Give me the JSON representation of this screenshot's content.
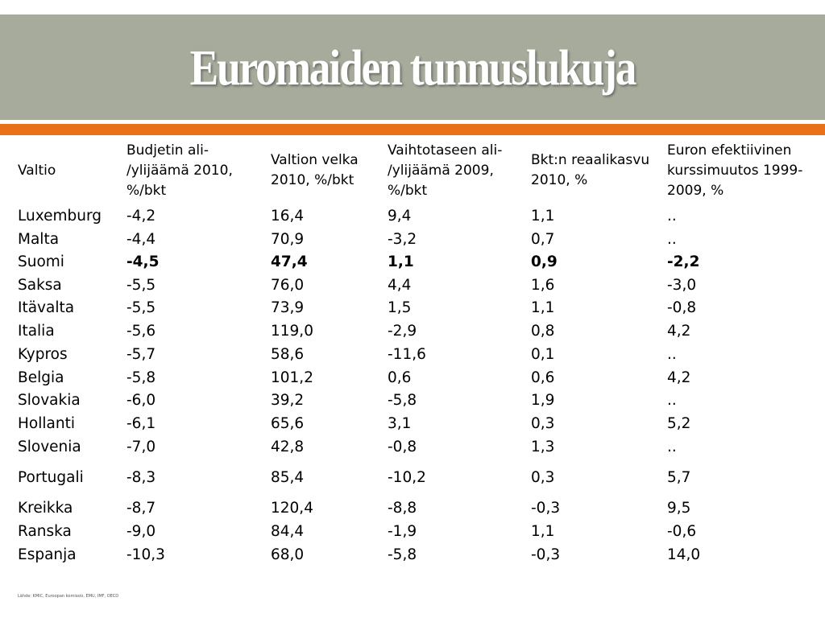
{
  "title": "Euromaiden tunnuslukuja",
  "table": {
    "headers": [
      [
        "Valtio"
      ],
      [
        "Budjetin ali-",
        "/ylijäämä 2010,",
        "%/bkt"
      ],
      [
        "Valtion velka",
        "2010, %/bkt"
      ],
      [
        "Vaihtotaseen ali-",
        "/ylijäämä 2009,",
        "%/bkt"
      ],
      [
        "Bkt:n reaalikasvu",
        "2010, %"
      ],
      [
        "Euron efektiivinen",
        "kurssimuutos 1999-",
        "2009, %"
      ]
    ],
    "rows": [
      [
        "Luxemburg",
        "-4,2",
        "16,4",
        "9,4",
        "1,1",
        ".."
      ],
      [
        "Malta",
        "-4,4",
        "70,9",
        "-3,2",
        "0,7",
        ".."
      ],
      [
        "Suomi",
        "-4,5",
        "47,4",
        "1,1",
        "0,9",
        "-2,2"
      ],
      [
        "Saksa",
        "-5,5",
        "76,0",
        "4,4",
        "1,6",
        "-3,0"
      ],
      [
        "Itävalta",
        "-5,5",
        "73,9",
        "1,5",
        "1,1",
        "-0,8"
      ],
      [
        "Italia",
        "-5,6",
        "119,0",
        "-2,9",
        "0,8",
        "4,2"
      ],
      [
        "Kypros",
        "-5,7",
        "58,6",
        "-11,6",
        "0,1",
        ".."
      ],
      [
        "Belgia",
        "-5,8",
        "101,2",
        "0,6",
        "0,6",
        "4,2"
      ],
      [
        "Slovakia",
        "-6,0",
        "39,2",
        "-5,8",
        "1,9",
        ".."
      ],
      [
        "Hollanti",
        "-6,1",
        "65,6",
        "3,1",
        "0,3",
        "5,2"
      ],
      [
        "Slovenia",
        "-7,0",
        "42,8",
        "-0,8",
        "1,3",
        ".."
      ],
      [
        "Portugali",
        "-8,3",
        "85,4",
        "-10,2",
        "0,3",
        "5,7"
      ],
      [
        "Kreikka",
        "-8,7",
        "120,4",
        "-8,8",
        "-0,3",
        "9,5"
      ],
      [
        "Ranska",
        "-9,0",
        "84,4",
        "-1,9",
        "1,1",
        "-0,6"
      ],
      [
        "Espanja",
        "-10,3",
        "68,0",
        "-5,8",
        "-0,3",
        "14,0"
      ]
    ],
    "highlighted_row": "Suomi"
  },
  "source_note": "Lähde: KMIC, Euroopan komissio, EMU, IMF, OECD"
}
